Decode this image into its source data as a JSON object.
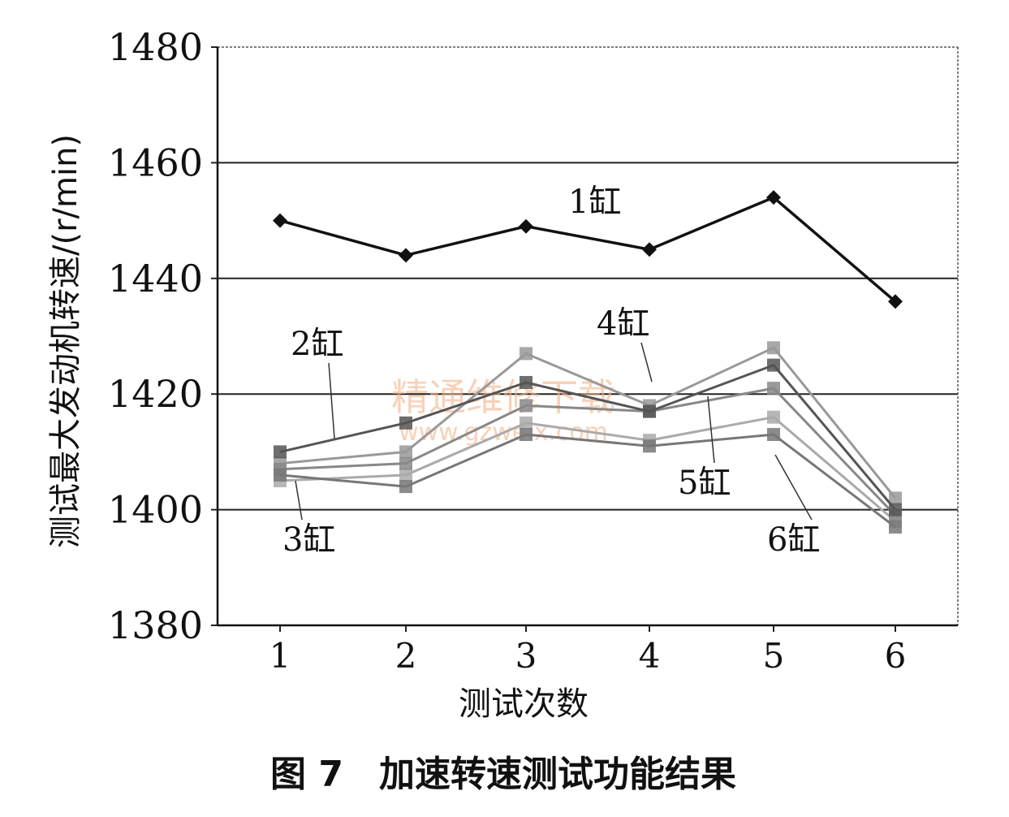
{
  "caption": "图 7　加速转速测试功能结果",
  "watermark": {
    "text": "精通维修下载",
    "url": "www.gzweix.com"
  },
  "chart_data": {
    "type": "line",
    "xlabel": "测试次数",
    "ylabel": "测试最大发动机转速/(r/min)",
    "categories": [
      "1",
      "2",
      "3",
      "4",
      "5",
      "6"
    ],
    "ylim": [
      1380,
      1480
    ],
    "yticks": [
      "1380",
      "1400",
      "1420",
      "1440",
      "1460",
      "1480"
    ],
    "grid": "horizontal",
    "legend": "inline labels",
    "series": [
      {
        "name": "1缸",
        "values": [
          1450,
          1444,
          1449,
          1445,
          1454,
          1436
        ],
        "color": "#111111",
        "marker": "diamond"
      },
      {
        "name": "2缸",
        "values": [
          1410,
          1415,
          1422,
          1417,
          1425,
          1400
        ],
        "color": "#555555",
        "marker": "square"
      },
      {
        "name": "3缸",
        "values": [
          1406,
          1404,
          1413,
          1411,
          1413,
          1397
        ],
        "color": "#777777",
        "marker": "square"
      },
      {
        "name": "4缸",
        "values": [
          1408,
          1410,
          1427,
          1418,
          1428,
          1402
        ],
        "color": "#999999",
        "marker": "square"
      },
      {
        "name": "5缸",
        "values": [
          1407,
          1408,
          1418,
          1417,
          1421,
          1399
        ],
        "color": "#888888",
        "marker": "square"
      },
      {
        "name": "6缸",
        "values": [
          1405,
          1406,
          1415,
          1412,
          1416,
          1398
        ],
        "color": "#aaaaaa",
        "marker": "square"
      }
    ]
  }
}
